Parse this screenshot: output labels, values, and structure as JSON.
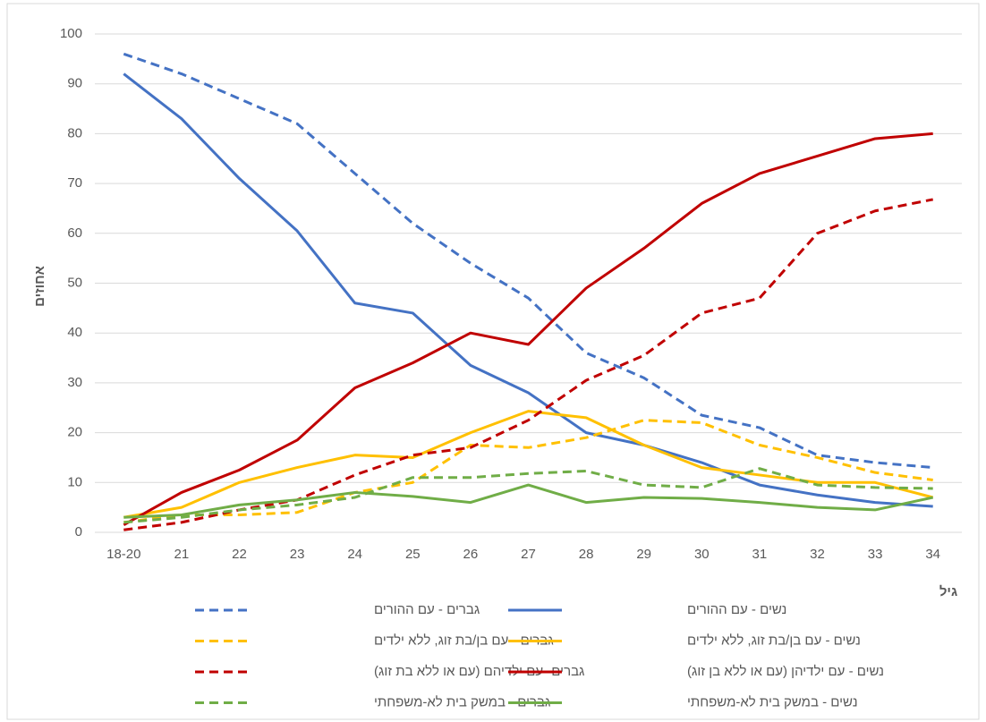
{
  "chart_data": {
    "type": "line",
    "y_label": "אחוזים",
    "x_label": "גיל",
    "categories": [
      "18-20",
      "21",
      "22",
      "23",
      "24",
      "25",
      "26",
      "27",
      "28",
      "29",
      "30",
      "31",
      "32",
      "33",
      "34"
    ],
    "ylim": [
      0,
      100
    ],
    "yticks": [
      0,
      10,
      20,
      30,
      40,
      50,
      60,
      70,
      80,
      90,
      100
    ],
    "grid": true,
    "series": [
      {
        "name": "גברים - עם ההורים",
        "color": "#4472c4",
        "dash": true,
        "values": [
          96,
          92,
          87,
          82,
          72,
          62,
          54,
          47,
          36,
          31,
          23.5,
          21,
          15.5,
          14,
          13
        ]
      },
      {
        "name": "נשים - עם ההורים",
        "color": "#4472c4",
        "dash": false,
        "values": [
          92,
          83,
          71,
          60.5,
          46,
          44,
          33.5,
          28,
          20,
          17.5,
          14,
          9.5,
          7.5,
          6,
          5.2
        ]
      },
      {
        "name": "גברים - עם בן/בת זוג, ללא ילדים",
        "color": "#ffc000",
        "dash": true,
        "values": [
          2,
          3.5,
          3.5,
          4,
          8,
          10,
          17.5,
          17,
          19,
          22.5,
          22,
          17.5,
          15,
          12,
          10.5
        ]
      },
      {
        "name": "נשים - עם בן/בת זוג, ללא ילדים",
        "color": "#ffc000",
        "dash": false,
        "values": [
          3,
          5,
          10,
          13,
          15.5,
          15,
          20,
          24.3,
          23,
          17.5,
          13,
          11.5,
          10,
          10,
          7
        ]
      },
      {
        "name": "גברים -עם ילדיהם (עם או ללא בת זוג)",
        "color": "#c00000",
        "dash": true,
        "values": [
          0.5,
          2,
          4.5,
          6.5,
          11.5,
          15.5,
          17,
          22.5,
          30.5,
          35.5,
          44,
          47,
          60,
          64.5,
          66.8
        ]
      },
      {
        "name": "נשים - עם ילדיהן (עם או ללא בן זוג)",
        "color": "#c00000",
        "dash": false,
        "values": [
          1.5,
          8,
          12.5,
          18.5,
          29,
          34,
          40,
          37.7,
          49,
          57,
          66,
          72,
          75.5,
          79,
          80
        ]
      },
      {
        "name": "גברים - במשק בית לא-משפחתי",
        "color": "#70ad47",
        "dash": true,
        "values": [
          2,
          3,
          4.5,
          5.5,
          7,
          11,
          11,
          11.8,
          12.3,
          9.5,
          9,
          12.8,
          9.5,
          9,
          8.8
        ]
      },
      {
        "name": "נשים - במשק בית לא-משפחתי",
        "color": "#70ad47",
        "dash": false,
        "values": [
          3,
          3.5,
          5.5,
          6.5,
          8,
          7.2,
          6,
          9.5,
          6,
          7,
          6.8,
          6,
          5,
          4.5,
          7
        ]
      }
    ]
  }
}
